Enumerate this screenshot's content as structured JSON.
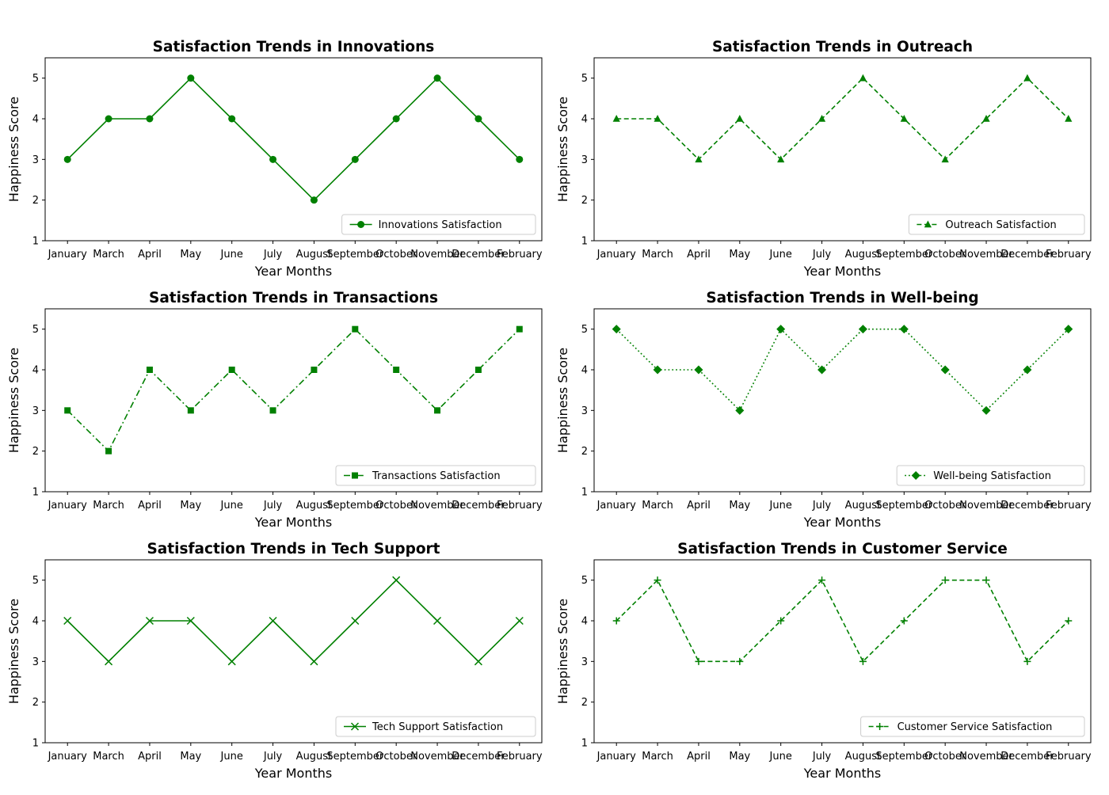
{
  "colors": {
    "line": "#008000",
    "axis": "#000000",
    "background": "#ffffff"
  },
  "chart_data": [
    {
      "type": "line",
      "title": "Satisfaction Trends in Innovations",
      "xlabel": "Year Months",
      "ylabel": "Happiness Score",
      "categories": [
        "January",
        "March",
        "April",
        "May",
        "June",
        "July",
        "August",
        "September",
        "October",
        "November",
        "December",
        "February"
      ],
      "ylim": [
        1,
        5.5
      ],
      "yticks": [
        1,
        2,
        3,
        4,
        5
      ],
      "grid": false,
      "legend_position": "lower right",
      "series": [
        {
          "name": "Innovations Satisfaction",
          "values": [
            3,
            4,
            4,
            5,
            4,
            3,
            2,
            3,
            4,
            5,
            4,
            3
          ],
          "linestyle": "solid",
          "marker": "circle"
        }
      ]
    },
    {
      "type": "line",
      "title": "Satisfaction Trends in Outreach",
      "xlabel": "Year Months",
      "ylabel": "Happiness Score",
      "categories": [
        "January",
        "March",
        "April",
        "May",
        "June",
        "July",
        "August",
        "September",
        "October",
        "November",
        "December",
        "February"
      ],
      "ylim": [
        1,
        5.5
      ],
      "yticks": [
        1,
        2,
        3,
        4,
        5
      ],
      "grid": false,
      "legend_position": "lower right",
      "series": [
        {
          "name": "Outreach Satisfaction",
          "values": [
            4,
            4,
            3,
            4,
            3,
            4,
            5,
            4,
            3,
            4,
            5,
            4
          ],
          "linestyle": "dashed",
          "marker": "triangle"
        }
      ]
    },
    {
      "type": "line",
      "title": "Satisfaction Trends in Transactions",
      "xlabel": "Year Months",
      "ylabel": "Happiness Score",
      "categories": [
        "January",
        "March",
        "April",
        "May",
        "June",
        "July",
        "August",
        "September",
        "October",
        "November",
        "December",
        "February"
      ],
      "ylim": [
        1,
        5.5
      ],
      "yticks": [
        1,
        2,
        3,
        4,
        5
      ],
      "grid": false,
      "legend_position": "lower right",
      "series": [
        {
          "name": "Transactions Satisfaction",
          "values": [
            3,
            2,
            4,
            3,
            4,
            3,
            4,
            5,
            4,
            3,
            4,
            5
          ],
          "linestyle": "dashdot",
          "marker": "square"
        }
      ]
    },
    {
      "type": "line",
      "title": "Satisfaction Trends in Well-being",
      "xlabel": "Year Months",
      "ylabel": "Happiness Score",
      "categories": [
        "January",
        "March",
        "April",
        "May",
        "June",
        "July",
        "August",
        "September",
        "October",
        "November",
        "December",
        "February"
      ],
      "ylim": [
        1,
        5.5
      ],
      "yticks": [
        1,
        2,
        3,
        4,
        5
      ],
      "grid": false,
      "legend_position": "lower right",
      "series": [
        {
          "name": "Well-being Satisfaction",
          "values": [
            5,
            4,
            4,
            3,
            5,
            4,
            5,
            5,
            4,
            3,
            4,
            5
          ],
          "linestyle": "dotted",
          "marker": "diamond"
        }
      ]
    },
    {
      "type": "line",
      "title": "Satisfaction Trends in Tech Support",
      "xlabel": "Year Months",
      "ylabel": "Happiness Score",
      "categories": [
        "January",
        "March",
        "April",
        "May",
        "June",
        "July",
        "August",
        "September",
        "October",
        "November",
        "December",
        "February"
      ],
      "ylim": [
        1,
        5.5
      ],
      "yticks": [
        1,
        2,
        3,
        4,
        5
      ],
      "grid": false,
      "legend_position": "lower right",
      "series": [
        {
          "name": "Tech Support Satisfaction",
          "values": [
            4,
            3,
            4,
            4,
            3,
            4,
            3,
            4,
            5,
            4,
            3,
            4
          ],
          "linestyle": "solid",
          "marker": "x"
        }
      ]
    },
    {
      "type": "line",
      "title": "Satisfaction Trends in Customer Service",
      "xlabel": "Year Months",
      "ylabel": "Happiness Score",
      "categories": [
        "January",
        "March",
        "April",
        "May",
        "June",
        "July",
        "August",
        "September",
        "October",
        "November",
        "December",
        "February"
      ],
      "ylim": [
        1,
        5.5
      ],
      "yticks": [
        1,
        2,
        3,
        4,
        5
      ],
      "grid": false,
      "legend_position": "lower right",
      "series": [
        {
          "name": "Customer Service Satisfaction",
          "values": [
            4,
            5,
            3,
            3,
            4,
            5,
            3,
            4,
            5,
            5,
            3,
            4
          ],
          "linestyle": "dashed",
          "marker": "plus"
        }
      ]
    }
  ]
}
